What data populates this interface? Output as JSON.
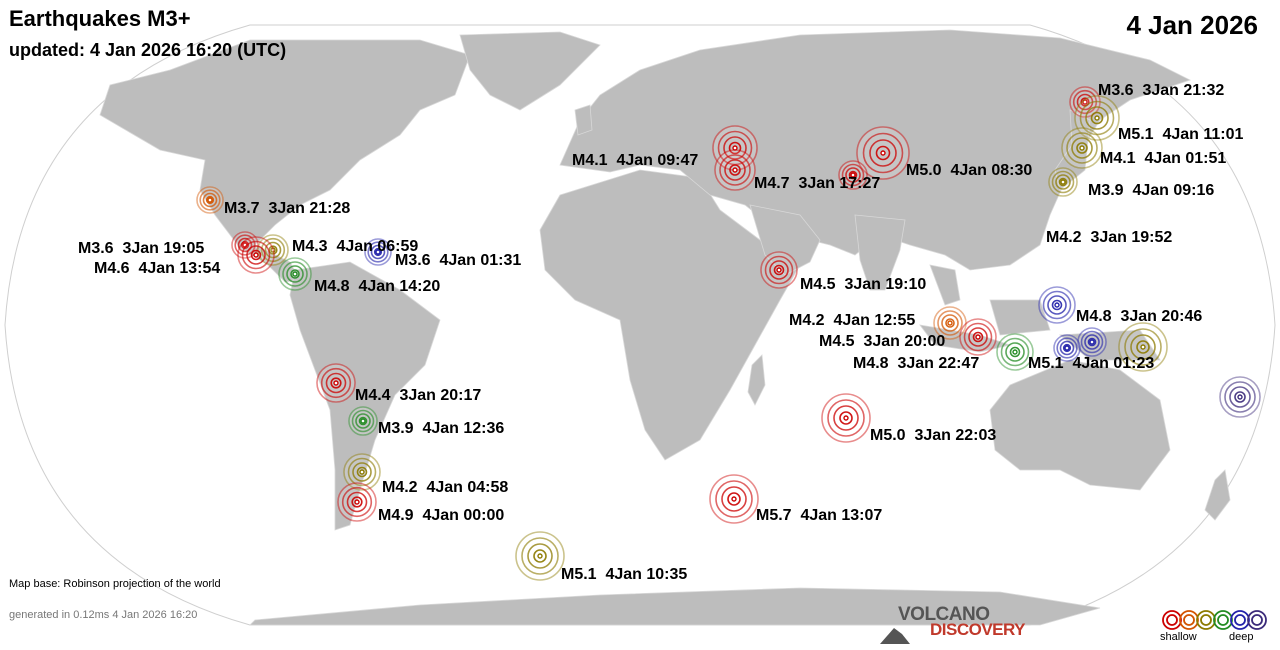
{
  "header": {
    "title": "Earthquakes M3+",
    "updated": "updated:  4 Jan 2026 16:20 (UTC)",
    "date": "4 Jan 2026"
  },
  "footer": {
    "map_base": "Map base: Robinson projection of the world",
    "generated": "generated in 0.12ms  4 Jan 2026 16:20"
  },
  "logo": {
    "line1": "VOLCANO",
    "line2": "DISCOVERY"
  },
  "legend": {
    "shallow": "shallow",
    "deep": "deep",
    "colors": [
      "#cc0000",
      "#d35400",
      "#8c7a00",
      "#228b22",
      "#2222aa",
      "#3b2a7a"
    ]
  },
  "colors": {
    "ocean": "#ffffff",
    "land": "#bdbdbd",
    "outline": "#cfcfcf"
  },
  "quakes": [
    {
      "label": "M3.6  3Jan 21:32",
      "color": "#cc0000"
    },
    {
      "label": "M5.1  4Jan 11:01",
      "color": "#8c7a00"
    },
    {
      "label": "M4.1  4Jan 01:51",
      "color": "#8c7a00"
    },
    {
      "label": "M3.9  4Jan 09:16",
      "color": "#8c7a00"
    },
    {
      "label": "M4.1  4Jan 09:47",
      "color": "#cc0000"
    },
    {
      "label": "M4.7  3Jan 17:27",
      "color": "#cc0000"
    },
    {
      "label": "M5.0  4Jan 08:30",
      "color": "#cc0000"
    },
    {
      "label": "M4.2  3Jan 19:52",
      "color": "#cc0000"
    },
    {
      "label": "M3.7  3Jan 21:28",
      "color": "#d35400"
    },
    {
      "label": "M3.6  3Jan 19:05",
      "color": "#cc0000"
    },
    {
      "label": "M4.3  4Jan 06:59",
      "color": "#8c7a00"
    },
    {
      "label": "M3.6  4Jan 01:31",
      "color": "#2222aa"
    },
    {
      "label": "M4.6  4Jan 13:54",
      "color": "#cc0000"
    },
    {
      "label": "M4.8  4Jan 14:20",
      "color": "#228b22"
    },
    {
      "label": "M4.5  3Jan 19:10",
      "color": "#cc0000"
    },
    {
      "label": "M4.8  3Jan 20:46",
      "color": "#2222aa"
    },
    {
      "label": "M4.2  4Jan 12:55",
      "color": "#d35400"
    },
    {
      "label": "M4.5  3Jan 20:00",
      "color": "#cc0000"
    },
    {
      "label": "M4.8  3Jan 22:47",
      "color": "#228b22"
    },
    {
      "label": "M5.1  4Jan 01:23",
      "color": "#2222aa"
    },
    {
      "label": "M4.4  3Jan 20:17",
      "color": "#cc0000"
    },
    {
      "label": "M3.9  4Jan 12:36",
      "color": "#228b22"
    },
    {
      "label": "M5.0  3Jan 22:03",
      "color": "#cc0000"
    },
    {
      "label": "M4.2  4Jan 04:58",
      "color": "#8c7a00"
    },
    {
      "label": "M4.9  4Jan 00:00",
      "color": "#cc0000"
    },
    {
      "label": "M5.7  4Jan 13:07",
      "color": "#cc0000"
    },
    {
      "label": "M5.1  4Jan 10:35",
      "color": "#8c7a00"
    },
    {
      "label": "",
      "color": "#8c7a00"
    },
    {
      "label": "",
      "color": "#2222aa"
    },
    {
      "label": "",
      "color": "#3b2a7a"
    }
  ]
}
